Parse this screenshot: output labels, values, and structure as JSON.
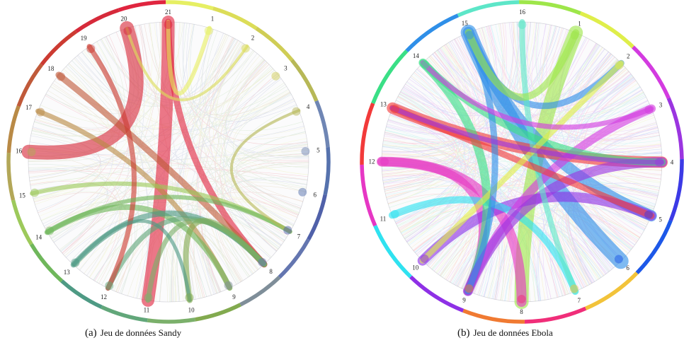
{
  "panels": [
    {
      "tag": "(a)",
      "caption": "Jeu de données Sandy",
      "segments": [
        {
          "label": "1",
          "color": "#e6ef63"
        },
        {
          "label": "2",
          "color": "#dcdd58"
        },
        {
          "label": "3",
          "color": "#cfcd55"
        },
        {
          "label": "4",
          "color": "#b7b857"
        },
        {
          "label": "5",
          "color": "#6f86b4"
        },
        {
          "label": "6",
          "color": "#5672ad"
        },
        {
          "label": "7",
          "color": "#5061a9"
        },
        {
          "label": "8",
          "color": "#6476b0"
        },
        {
          "label": "9",
          "color": "#7f8e99"
        },
        {
          "label": "10",
          "color": "#82aa4f"
        },
        {
          "label": "11",
          "color": "#7bb06b"
        },
        {
          "label": "12",
          "color": "#62a77a"
        },
        {
          "label": "13",
          "color": "#4e9a84"
        },
        {
          "label": "14",
          "color": "#6fb75b"
        },
        {
          "label": "15",
          "color": "#9dc95b"
        },
        {
          "label": "16",
          "color": "#b3a758"
        },
        {
          "label": "17",
          "color": "#b98a46"
        },
        {
          "label": "18",
          "color": "#c05a3a"
        },
        {
          "label": "19",
          "color": "#cc3b32"
        },
        {
          "label": "20",
          "color": "#d62a3a"
        },
        {
          "label": "21",
          "color": "#e0253f"
        }
      ]
    },
    {
      "tag": "(b)",
      "caption": "Jeu de données Ebola",
      "segments": [
        {
          "label": "1",
          "color": "#9ee64a"
        },
        {
          "label": "2",
          "color": "#dfee4a"
        },
        {
          "label": "3",
          "color": "#d33be0"
        },
        {
          "label": "4",
          "color": "#9b35e0"
        },
        {
          "label": "5",
          "color": "#3c3ae6"
        },
        {
          "label": "6",
          "color": "#1d58e8"
        },
        {
          "label": "7",
          "color": "#f2c33a"
        },
        {
          "label": "8",
          "color": "#f02e79"
        },
        {
          "label": "9",
          "color": "#f07a32"
        },
        {
          "label": "10",
          "color": "#8e30e6"
        },
        {
          "label": "11",
          "color": "#2fe2f0"
        },
        {
          "label": "12",
          "color": "#e637c4"
        },
        {
          "label": "13",
          "color": "#f23a3a"
        },
        {
          "label": "14",
          "color": "#3adf86"
        },
        {
          "label": "15",
          "color": "#2f8fe8"
        },
        {
          "label": "16",
          "color": "#5de6c8"
        }
      ]
    }
  ]
}
